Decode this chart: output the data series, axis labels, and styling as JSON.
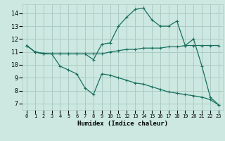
{
  "xlabel": "Humidex (Indice chaleur)",
  "bg_color": "#cce8e0",
  "grid_color": "#aaccc4",
  "line_color": "#1a7060",
  "xlim": [
    -0.5,
    23.5
  ],
  "ylim": [
    6.5,
    14.7
  ],
  "xticks": [
    0,
    1,
    2,
    3,
    4,
    5,
    6,
    7,
    8,
    9,
    10,
    11,
    12,
    13,
    14,
    15,
    16,
    17,
    18,
    19,
    20,
    21,
    22,
    23
  ],
  "yticks": [
    7,
    8,
    9,
    10,
    11,
    12,
    13,
    14
  ],
  "line1_x": [
    0,
    1,
    2,
    3,
    4,
    5,
    6,
    7,
    8,
    9,
    10,
    11,
    12,
    13,
    14,
    15,
    16,
    17,
    18,
    19,
    20,
    21,
    22,
    23
  ],
  "line1_y": [
    11.5,
    11.0,
    10.9,
    10.85,
    10.85,
    10.85,
    10.85,
    10.85,
    10.4,
    11.6,
    11.7,
    13.0,
    13.7,
    14.3,
    14.4,
    13.5,
    13.0,
    13.0,
    13.4,
    11.5,
    12.0,
    9.9,
    7.5,
    6.9
  ],
  "line2_x": [
    0,
    1,
    2,
    3,
    4,
    5,
    6,
    7,
    8,
    9,
    10,
    11,
    12,
    13,
    14,
    15,
    16,
    17,
    18,
    19,
    20,
    21,
    22,
    23
  ],
  "line2_y": [
    11.5,
    11.0,
    10.85,
    10.85,
    10.85,
    10.85,
    10.85,
    10.85,
    10.85,
    10.85,
    11.0,
    11.1,
    11.2,
    11.2,
    11.3,
    11.3,
    11.3,
    11.4,
    11.4,
    11.5,
    11.5,
    11.5,
    11.5,
    11.5
  ],
  "line3_x": [
    0,
    1,
    2,
    3,
    4,
    5,
    6,
    7,
    8,
    9,
    10,
    11,
    12,
    13,
    14,
    15,
    16,
    17,
    18,
    19,
    20,
    21,
    22,
    23
  ],
  "line3_y": [
    11.5,
    11.0,
    10.85,
    10.85,
    9.9,
    9.6,
    9.3,
    8.2,
    7.7,
    9.3,
    9.2,
    9.0,
    8.8,
    8.6,
    8.5,
    8.3,
    8.1,
    7.9,
    7.8,
    7.7,
    7.6,
    7.5,
    7.3,
    6.9
  ]
}
